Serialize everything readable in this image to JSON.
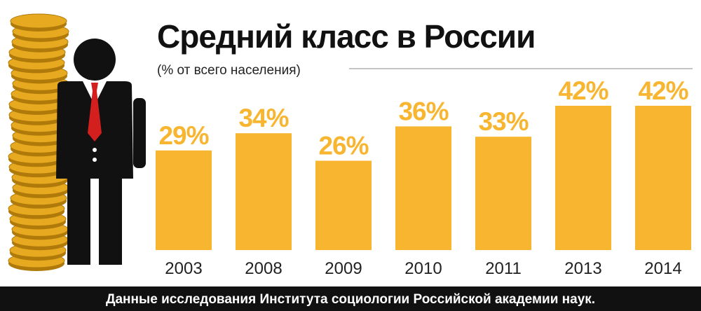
{
  "chart_data": {
    "type": "bar",
    "title": "Средний класс в России",
    "subtitle": "(% от всего населения)",
    "categories": [
      "2003",
      "2008",
      "2009",
      "2010",
      "2011",
      "2013",
      "2014"
    ],
    "values": [
      29,
      34,
      26,
      36,
      33,
      42,
      42
    ],
    "value_labels": [
      "29%",
      "34%",
      "26%",
      "36%",
      "33%",
      "42%",
      "42%"
    ],
    "xlabel": "",
    "ylabel": "",
    "ylim": [
      0,
      42
    ],
    "grid": false,
    "legend": "none",
    "footer": "Данные исследования Института социологии Российской академии наук."
  },
  "colors": {
    "bar": "#f8b530",
    "label": "#f8b530",
    "text": "#222222",
    "footer_bg": "#111111",
    "footer_text": "#ffffff",
    "coin": "#e6a920",
    "coin_edge": "#b07a0a",
    "suit": "#111111",
    "tie": "#d41f1f"
  },
  "illustration": {
    "coins": "coin-stack-icon",
    "person": "businessman-icon"
  }
}
